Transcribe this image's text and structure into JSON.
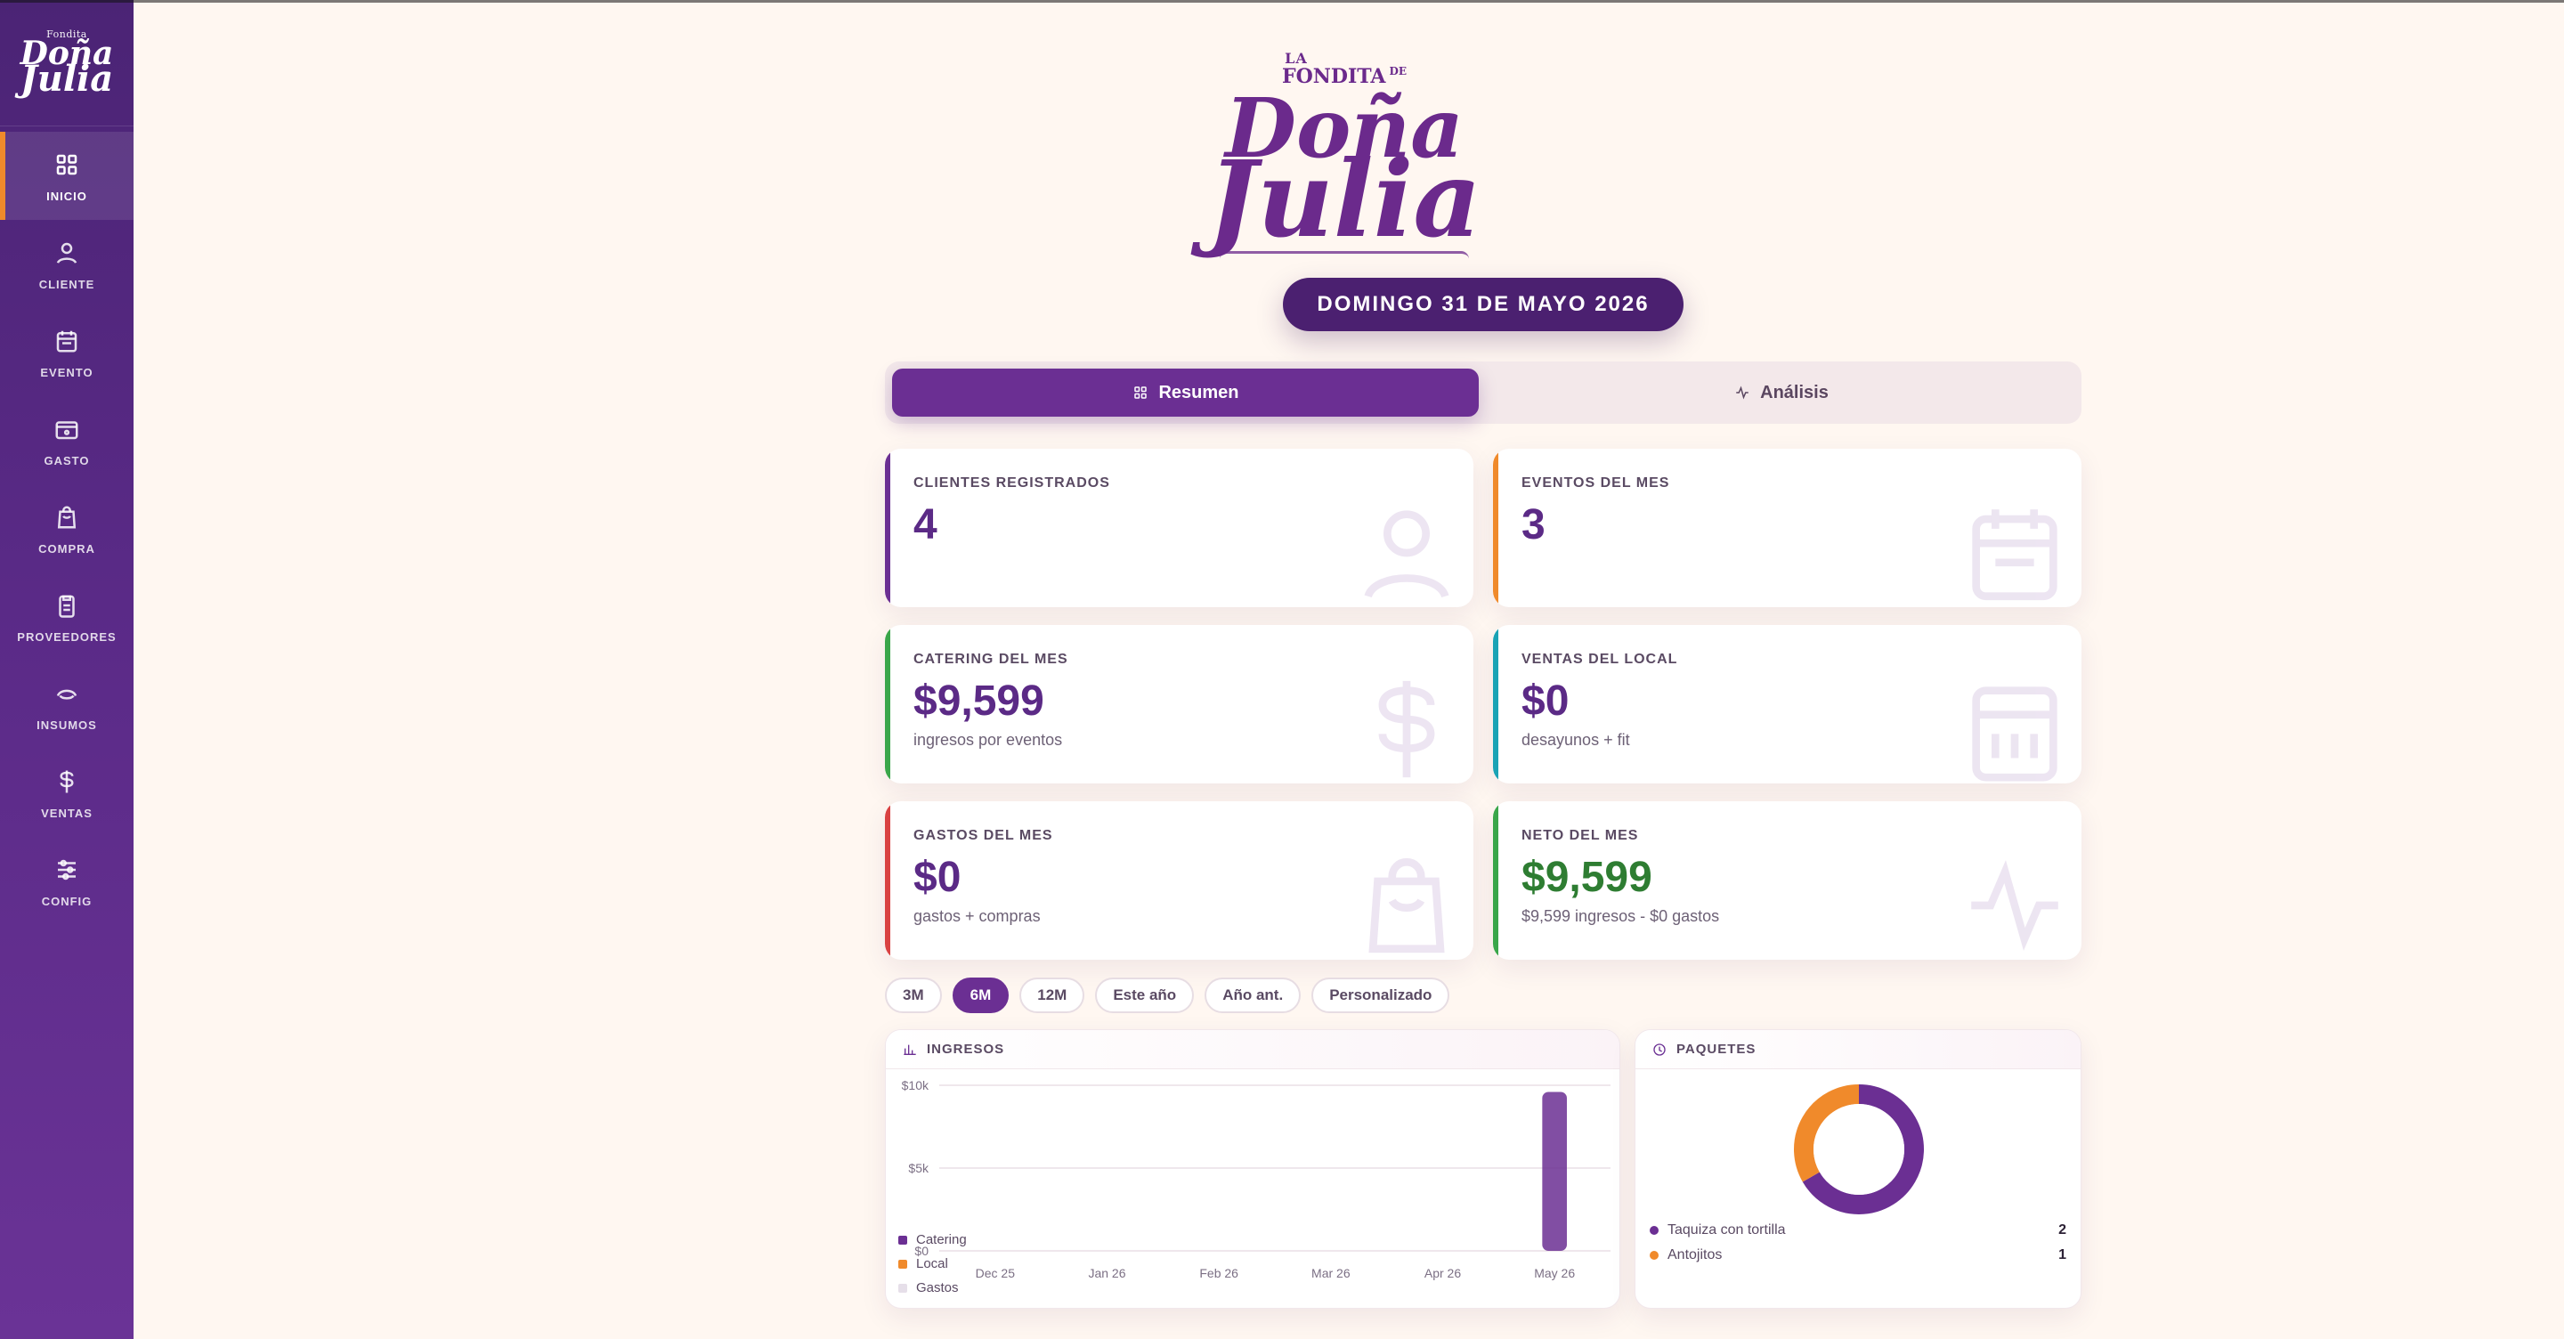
{
  "app": {
    "brand_logo_text": "La Fondita de Doña Julia",
    "date_pill": "DOMINGO 31 DE MAYO 2026"
  },
  "sidebar": {
    "items": [
      {
        "label": "INICIO",
        "icon": "grid-icon",
        "active": true
      },
      {
        "label": "CLIENTE",
        "icon": "user-icon",
        "active": false
      },
      {
        "label": "EVENTO",
        "icon": "calendar-icon",
        "active": false
      },
      {
        "label": "GASTO",
        "icon": "wallet-icon",
        "active": false
      },
      {
        "label": "COMPRA",
        "icon": "shopping-bag-icon",
        "active": false
      },
      {
        "label": "PROVEEDORES",
        "icon": "clipboard-icon",
        "active": false
      },
      {
        "label": "INSUMOS",
        "icon": "taco-icon",
        "active": false
      },
      {
        "label": "VENTAS",
        "icon": "dollar-icon",
        "active": false
      },
      {
        "label": "CONFIG",
        "icon": "sliders-icon",
        "active": false
      }
    ]
  },
  "tabs": [
    {
      "label": "Resumen",
      "icon": "grid-icon",
      "active": true
    },
    {
      "label": "Análisis",
      "icon": "activity-icon",
      "active": false
    }
  ],
  "stats": [
    {
      "title": "CLIENTES REGISTRADOS",
      "value": "4",
      "sub": "",
      "accent": "#6b2f93",
      "value_color": "#5b2a86",
      "bg_icon": "user-icon"
    },
    {
      "title": "EVENTOS DEL MES",
      "value": "3",
      "sub": "",
      "accent": "#f08a2b",
      "value_color": "#5b2a86",
      "bg_icon": "calendar-icon"
    },
    {
      "title": "CATERING DEL MES",
      "value": "$9,599",
      "sub": "ingresos por eventos",
      "accent": "#3aa64a",
      "value_color": "#5b2a86",
      "bg_icon": "dollar-icon"
    },
    {
      "title": "VENTAS DEL LOCAL",
      "value": "$0",
      "sub": "desayunos + fit",
      "accent": "#1aa3b5",
      "value_color": "#5b2a86",
      "bg_icon": "cash-register-icon"
    },
    {
      "title": "GASTOS DEL MES",
      "value": "$0",
      "sub": "gastos + compras",
      "accent": "#d94242",
      "value_color": "#5b2a86",
      "bg_icon": "shopping-bag-icon"
    },
    {
      "title": "NETO DEL MES",
      "value": "$9,599",
      "sub": "$9,599 ingresos - $0 gastos",
      "accent": "#3aa64a",
      "value_color": "#2e7d32",
      "bg_icon": "activity-icon"
    }
  ],
  "ranges": [
    {
      "label": "3M",
      "active": false
    },
    {
      "label": "6M",
      "active": true
    },
    {
      "label": "12M",
      "active": false
    },
    {
      "label": "Este año",
      "active": false
    },
    {
      "label": "Año ant.",
      "active": false
    },
    {
      "label": "Personalizado",
      "active": false
    }
  ],
  "panels": {
    "incomes_title": "INGRESOS",
    "packages_title": "PAQUETES"
  },
  "chart_data": [
    {
      "type": "bar",
      "title": "",
      "categories": [
        "Dec 25",
        "Jan 26",
        "Feb 26",
        "Mar 26",
        "Apr 26",
        "May 26"
      ],
      "series": [
        {
          "name": "Catering",
          "values": [
            0,
            0,
            0,
            0,
            0,
            9599
          ]
        },
        {
          "name": "Local",
          "values": [
            0,
            0,
            0,
            0,
            0,
            0
          ]
        },
        {
          "name": "Gastos",
          "values": [
            0,
            0,
            0,
            0,
            0,
            0
          ]
        }
      ],
      "y_ticks": [
        "$10k",
        "$5k",
        "$0"
      ],
      "ylim": [
        0,
        10000
      ],
      "grid": true,
      "legend": "bottom-left",
      "colors": {
        "Catering": "#6b2f93",
        "Local": "#f08a2b",
        "Gastos": "#e6dfe9"
      }
    },
    {
      "type": "pie",
      "title": "",
      "labels": [
        "Taquiza con tortilla",
        "Antojitos"
      ],
      "values": [
        2,
        1
      ],
      "colors": [
        "#6b2f93",
        "#f08a2b"
      ],
      "legend": "bottom"
    }
  ]
}
